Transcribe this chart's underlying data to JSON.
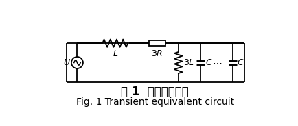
{
  "title_cn": "图 1  暂态等效电路",
  "title_en": "Fig. 1 Transient equivalent circuit",
  "bg_color": "#ffffff",
  "line_color": "#000000",
  "title_cn_fontsize": 12,
  "title_en_fontsize": 10,
  "fig_width": 4.35,
  "fig_height": 1.84,
  "dpi": 100
}
